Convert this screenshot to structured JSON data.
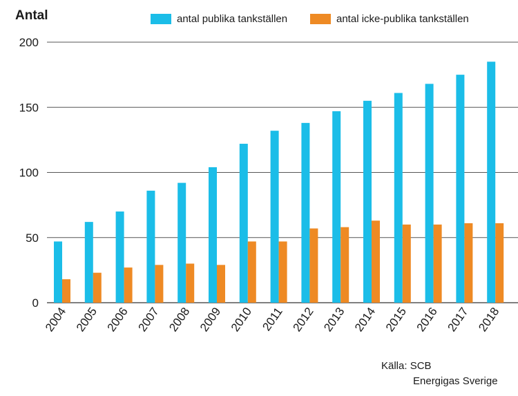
{
  "chart_data": {
    "type": "bar",
    "ylabel": "Antal",
    "xlabel": "",
    "title": "",
    "ylim": [
      0,
      200
    ],
    "yticks": [
      0,
      50,
      100,
      150,
      200
    ],
    "grid": true,
    "legend_position": "top",
    "categories": [
      "2004",
      "2005",
      "2006",
      "2007",
      "2008",
      "2009",
      "2010",
      "2011",
      "2012",
      "2013",
      "2014",
      "2015",
      "2016",
      "2017",
      "2018"
    ],
    "series": [
      {
        "name": "antal publika tankställen",
        "color": "#1bbde8",
        "values": [
          47,
          62,
          70,
          86,
          92,
          104,
          122,
          132,
          138,
          147,
          155,
          161,
          168,
          175,
          185
        ]
      },
      {
        "name": "antal icke-publika tankställen",
        "color": "#ee8a24",
        "values": [
          18,
          23,
          27,
          29,
          30,
          29,
          47,
          47,
          57,
          58,
          63,
          60,
          60,
          61,
          61
        ]
      }
    ]
  },
  "source": {
    "line1": "Källa: SCB",
    "line2": "Energigas Sverige"
  }
}
